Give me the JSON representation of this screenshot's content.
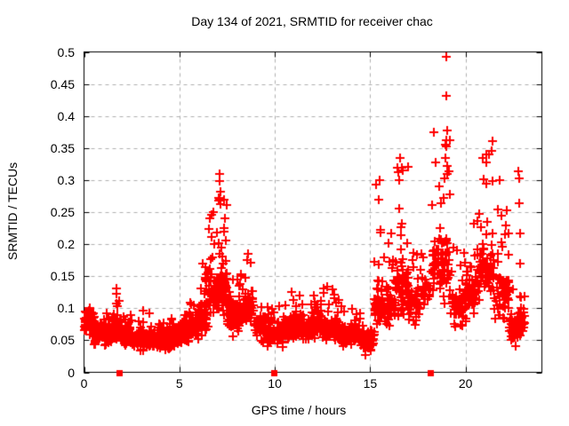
{
  "chart_data": {
    "type": "scatter",
    "title": "Day 134 of 2021, SRMTID for receiver chac",
    "xlabel": "GPS time / hours",
    "ylabel": "SRMTID / TECUs",
    "xlim": [
      0,
      24
    ],
    "ylim": [
      0,
      0.5
    ],
    "xticks": [
      {
        "value": 0,
        "label": "0"
      },
      {
        "value": 5,
        "label": "5"
      },
      {
        "value": 10,
        "label": "10"
      },
      {
        "value": 15,
        "label": "15"
      },
      {
        "value": 20,
        "label": "20"
      }
    ],
    "yticks": [
      {
        "value": 0,
        "label": "0"
      },
      {
        "value": 0.05,
        "label": "0.05"
      },
      {
        "value": 0.1,
        "label": "0.1"
      },
      {
        "value": 0.15,
        "label": "0.15"
      },
      {
        "value": 0.2,
        "label": "0.2"
      },
      {
        "value": 0.25,
        "label": "0.25"
      },
      {
        "value": 0.3,
        "label": "0.3"
      },
      {
        "value": 0.35,
        "label": "0.35"
      },
      {
        "value": 0.4,
        "label": "0.4"
      },
      {
        "value": 0.45,
        "label": "0.45"
      },
      {
        "value": 0.5,
        "label": "0.5"
      }
    ],
    "grid": true,
    "legend_position": "none",
    "colors": {
      "points": "#ff0000",
      "grid": "#b0b0b0",
      "frame": "#000000",
      "background": "#ffffff",
      "text": "#000000"
    },
    "series": [
      {
        "name": "SRMTID scatter",
        "marker": "plus",
        "color": "#ff0000",
        "bin_format": "[x_start_hr, x_end_hr, y_min_TECU, y_typical_TECU, y_max_TECU, n_points]",
        "density_bins": [
          [
            0.0,
            0.5,
            0.035,
            0.075,
            0.1,
            55
          ],
          [
            0.5,
            1.0,
            0.03,
            0.06,
            0.095,
            55
          ],
          [
            1.0,
            1.5,
            0.03,
            0.06,
            0.1,
            55
          ],
          [
            1.5,
            2.0,
            0.03,
            0.065,
            0.135,
            55
          ],
          [
            2.0,
            2.5,
            0.025,
            0.055,
            0.09,
            50
          ],
          [
            2.5,
            3.0,
            0.02,
            0.05,
            0.085,
            50
          ],
          [
            3.0,
            3.5,
            0.02,
            0.05,
            0.095,
            50
          ],
          [
            3.5,
            4.0,
            0.02,
            0.05,
            0.08,
            50
          ],
          [
            4.0,
            4.5,
            0.02,
            0.05,
            0.08,
            50
          ],
          [
            4.5,
            5.0,
            0.02,
            0.055,
            0.085,
            50
          ],
          [
            5.0,
            5.5,
            0.03,
            0.06,
            0.1,
            50
          ],
          [
            5.5,
            6.0,
            0.035,
            0.07,
            0.12,
            55
          ],
          [
            6.0,
            6.5,
            0.04,
            0.09,
            0.17,
            55
          ],
          [
            6.5,
            7.0,
            0.05,
            0.12,
            0.26,
            60
          ],
          [
            7.0,
            7.5,
            0.06,
            0.13,
            0.31,
            60
          ],
          [
            7.5,
            8.0,
            0.04,
            0.09,
            0.16,
            50
          ],
          [
            8.0,
            8.4,
            0.04,
            0.09,
            0.155,
            40
          ],
          [
            8.4,
            8.9,
            0.05,
            0.1,
            0.185,
            45
          ],
          [
            8.9,
            9.5,
            0.035,
            0.07,
            0.12,
            50
          ],
          [
            9.5,
            10.5,
            0.03,
            0.06,
            0.105,
            80
          ],
          [
            10.5,
            11.5,
            0.035,
            0.07,
            0.125,
            90
          ],
          [
            11.5,
            12.5,
            0.035,
            0.07,
            0.12,
            90
          ],
          [
            12.5,
            13.5,
            0.035,
            0.065,
            0.135,
            85
          ],
          [
            13.5,
            14.5,
            0.03,
            0.06,
            0.105,
            80
          ],
          [
            14.5,
            15.2,
            0.01,
            0.05,
            0.09,
            50
          ],
          [
            15.2,
            15.8,
            0.04,
            0.1,
            0.3,
            55
          ],
          [
            15.8,
            16.3,
            0.05,
            0.1,
            0.22,
            50
          ],
          [
            16.3,
            17.0,
            0.06,
            0.13,
            0.33,
            70
          ],
          [
            17.0,
            17.6,
            0.04,
            0.1,
            0.2,
            45
          ],
          [
            17.6,
            18.2,
            0.08,
            0.13,
            0.2,
            25
          ],
          [
            18.2,
            19.2,
            0.08,
            0.17,
            0.38,
            85
          ],
          [
            19.2,
            20.0,
            0.04,
            0.1,
            0.2,
            55
          ],
          [
            20.0,
            20.6,
            0.06,
            0.12,
            0.25,
            45
          ],
          [
            20.6,
            21.5,
            0.08,
            0.16,
            0.34,
            75
          ],
          [
            21.5,
            22.3,
            0.05,
            0.12,
            0.26,
            70
          ],
          [
            22.3,
            23.1,
            0.02,
            0.07,
            0.13,
            75
          ]
        ],
        "outlier_points": [
          [
            1.68,
            0.122
          ],
          [
            1.7,
            0.131
          ],
          [
            3.1,
            0.096
          ],
          [
            6.6,
            0.24
          ],
          [
            7.13,
            0.31
          ],
          [
            7.13,
            0.298
          ],
          [
            7.14,
            0.282
          ],
          [
            7.12,
            0.27
          ],
          [
            7.15,
            0.262
          ],
          [
            8.6,
            0.185
          ],
          [
            8.55,
            0.175
          ],
          [
            15.33,
            0.293
          ],
          [
            15.5,
            0.3
          ],
          [
            15.45,
            0.27
          ],
          [
            16.55,
            0.335
          ],
          [
            16.7,
            0.315
          ],
          [
            16.5,
            0.3
          ],
          [
            18.35,
            0.375
          ],
          [
            18.95,
            0.335
          ],
          [
            19.0,
            0.493
          ],
          [
            19.0,
            0.432
          ],
          [
            19.05,
            0.377
          ],
          [
            19.0,
            0.362
          ],
          [
            19.0,
            0.352
          ],
          [
            19.02,
            0.322
          ],
          [
            20.9,
            0.335
          ],
          [
            21.1,
            0.34
          ],
          [
            21.4,
            0.361
          ],
          [
            21.35,
            0.345
          ],
          [
            21.8,
            0.3
          ],
          [
            22.5,
            0.13
          ],
          [
            22.78,
            0.314
          ],
          [
            22.82,
            0.303
          ],
          [
            22.8,
            0.264
          ],
          [
            22.85,
            0.217
          ],
          [
            22.85,
            0.169
          ]
        ]
      },
      {
        "name": "x-axis flag markers",
        "marker": "filled-square",
        "color": "#ff0000",
        "points": [
          [
            1.85,
            0
          ],
          [
            9.95,
            0
          ],
          [
            18.15,
            0
          ]
        ]
      }
    ]
  },
  "render": {
    "seed": 2021134
  }
}
